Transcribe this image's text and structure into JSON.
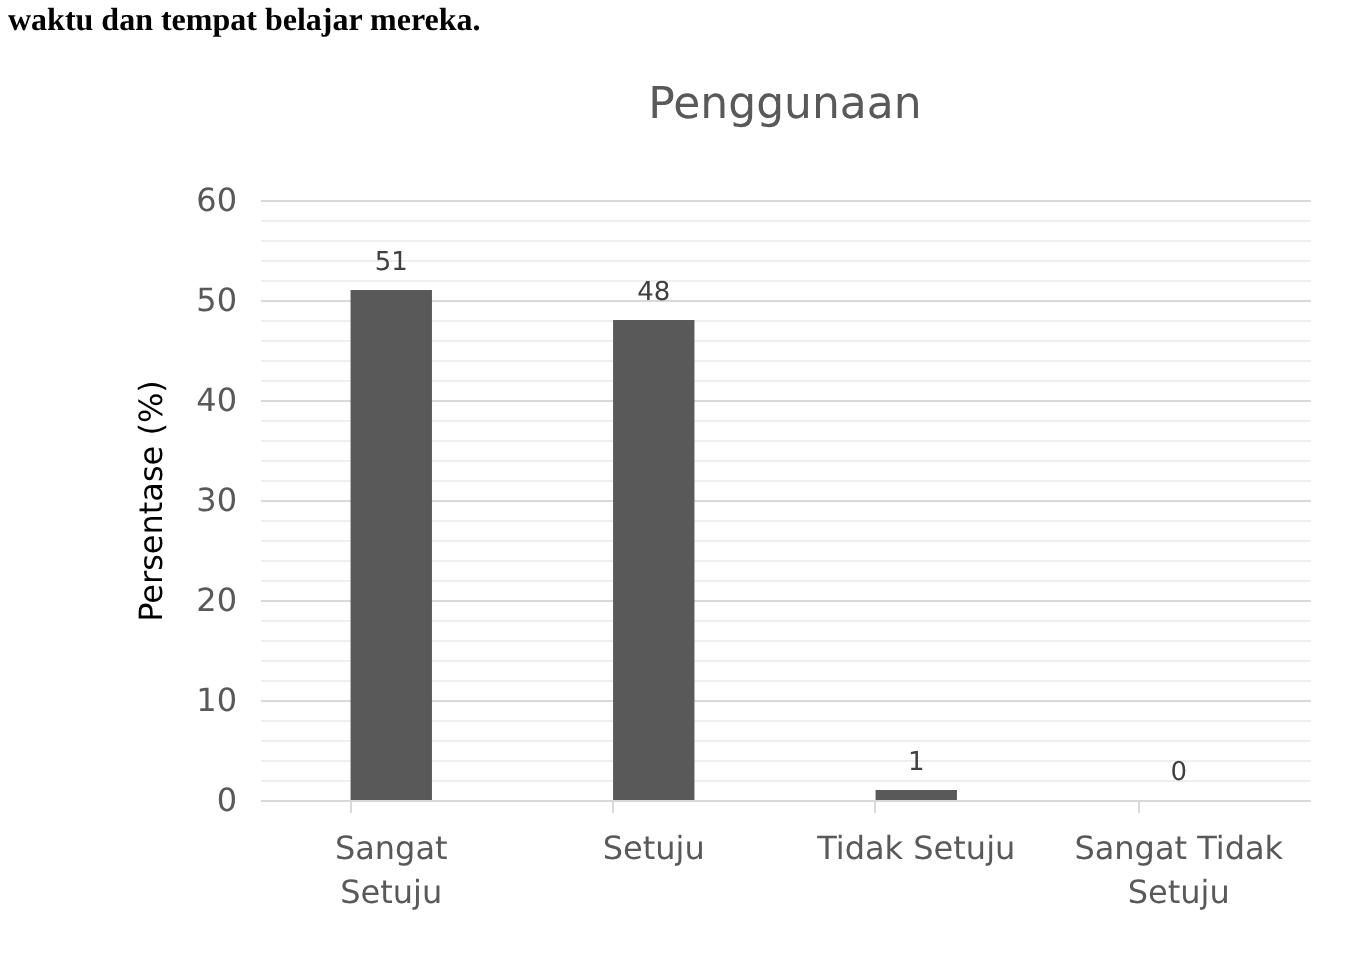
{
  "chart_data": {
    "type": "bar",
    "title": "Penggunaan",
    "ylabel": "Persentase (%)",
    "annotations": [
      "waktu dan tempat belajar mereka."
    ],
    "categories": [
      "Sangat Setuju",
      "Setuju",
      "Tidak Setuju",
      "Sangat Tidak Setuju"
    ],
    "values": [
      51,
      48,
      1,
      0
    ],
    "color": "#595959",
    "ylim": [
      0,
      60
    ],
    "yticks": [
      0,
      {
        "value": 2,
        "label": null
      },
      {
        "value": 4,
        "label": null
      },
      {
        "value": 6,
        "label": null
      },
      {
        "value": 8,
        "label": null
      },
      10,
      {
        "value": 12,
        "label": null
      },
      {
        "value": 14,
        "label": null
      },
      {
        "value": 16,
        "label": null
      },
      {
        "value": 18,
        "label": null
      },
      20,
      {
        "value": 22,
        "label": null
      },
      {
        "value": 24,
        "label": null
      },
      {
        "value": 26,
        "label": null
      },
      {
        "value": 28,
        "label": null
      },
      30,
      {
        "value": 32,
        "label": null
      },
      {
        "value": 34,
        "label": null
      },
      {
        "value": 36,
        "label": null
      },
      {
        "value": 38,
        "label": null
      },
      40,
      {
        "value": 42,
        "label": null
      },
      {
        "value": 44,
        "label": null
      },
      {
        "value": 46,
        "label": null
      },
      {
        "value": 48,
        "label": null
      },
      50,
      {
        "value": 52,
        "label": null
      },
      {
        "value": 54,
        "label": null
      },
      {
        "value": 56,
        "label": null
      },
      {
        "value": 58,
        "label": null
      },
      60
    ],
    "grid": true,
    "data_labels": true
  }
}
